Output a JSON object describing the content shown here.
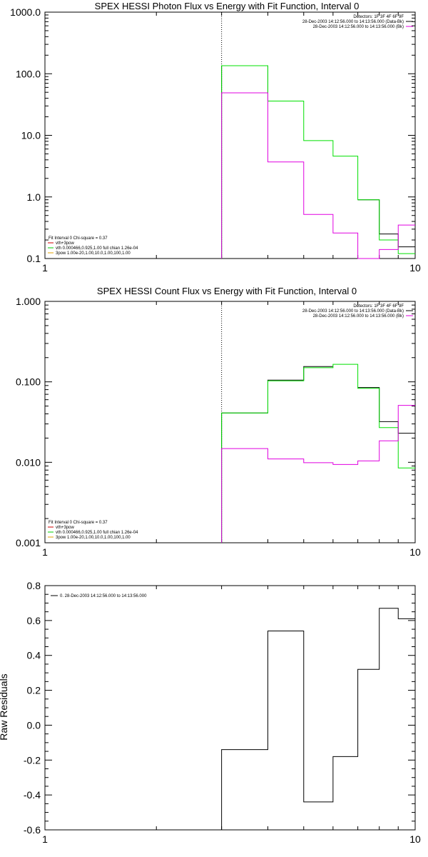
{
  "chart_data": [
    {
      "type": "line",
      "title": "SPEX HESSI Photon Flux vs Energy with Fit Function, Interval 0",
      "xlabel": "",
      "ylabel": "",
      "x_scale": "log",
      "y_scale": "log",
      "xlim": [
        1,
        10
      ],
      "ylim": [
        0.1,
        1000
      ],
      "x_ticks": [
        {
          "value": 1,
          "label": "1"
        },
        {
          "value": 10,
          "label": "10"
        }
      ],
      "y_ticks": [
        {
          "value": 0.1,
          "label": "0.1"
        },
        {
          "value": 1,
          "label": "1.0"
        },
        {
          "value": 10,
          "label": "10.0"
        },
        {
          "value": 100,
          "label": "100.0"
        },
        {
          "value": 1000,
          "label": "1000.0"
        }
      ],
      "vline_x": 3.0,
      "header_lines": [
        "Detectors: 1F 3F 4F 6F 9F",
        "28-Dec-2003 14:12:56.000 to 14:13:56.000 (Data-Bk)",
        "28-Dec-2003 14:12:56.000 to 14:13:56.000 (Bk)"
      ],
      "header_colors": [
        "none",
        "#000000",
        "#e000e0"
      ],
      "fit_legend": [
        {
          "text": "Fit Interval 0   Chi-square = 0.37",
          "color": "none"
        },
        {
          "text": "vth+3pow",
          "color": "#d00000"
        },
        {
          "text": "vth 0.000466,0.925,1.00  full chian 1.26e-04",
          "color": "#00d000"
        },
        {
          "text": "3pow 1.00e-20,1.00,10.0,1.00,100,1.00",
          "color": "#e0a000"
        }
      ],
      "series": [
        {
          "color": "#000000",
          "edges": [
            3,
            4,
            5,
            6,
            7,
            8,
            9,
            10
          ],
          "values": [
            135,
            36,
            null,
            null,
            0.9,
            0.25,
            0.155
          ]
        },
        {
          "color": "#00e000",
          "edges": [
            3,
            4,
            5,
            6,
            7,
            8,
            9,
            10
          ],
          "values": [
            135,
            36,
            8.2,
            4.6,
            0.9,
            0.2,
            0.12
          ]
        },
        {
          "color": "#e000e0",
          "edges": [
            3,
            4,
            5,
            6,
            7,
            8,
            9,
            10
          ],
          "values": [
            49,
            3.7,
            0.52,
            0.26,
            0.1,
            0.14,
            0.35
          ]
        }
      ]
    },
    {
      "type": "line",
      "title": "SPEX HESSI Count Flux vs Energy with Fit Function, Interval 0",
      "xlabel": "",
      "ylabel": "",
      "x_scale": "log",
      "y_scale": "log",
      "xlim": [
        1,
        10
      ],
      "ylim": [
        0.001,
        1
      ],
      "x_ticks": [
        {
          "value": 1,
          "label": "1"
        },
        {
          "value": 10,
          "label": "10"
        }
      ],
      "y_ticks": [
        {
          "value": 0.001,
          "label": "0.001"
        },
        {
          "value": 0.01,
          "label": "0.010"
        },
        {
          "value": 0.1,
          "label": "0.100"
        },
        {
          "value": 1,
          "label": "1.000"
        }
      ],
      "vline_x": 3.0,
      "header_lines": [
        "Detectors: 1F 3F 4F 6F 9F",
        "28-Dec-2003 14:12:56.000 to 14:13:56.000 (Data-Bk)",
        "28-Dec-2003 14:12:56.000 to 14:13:56.000 (Bk)"
      ],
      "header_colors": [
        "none",
        "#000000",
        "#e000e0"
      ],
      "fit_legend": [
        {
          "text": "Fit Interval 0   Chi-square = 0.37",
          "color": "none"
        },
        {
          "text": "vth+3pow",
          "color": "#d00000"
        },
        {
          "text": "vth 0.000466,0.925,1.00  full chian 1.26e-04",
          "color": "#00d000"
        },
        {
          "text": "3pow 1.00e-20,1.00,10.0,1.00,100,1.00",
          "color": "#e0a000"
        }
      ],
      "series": [
        {
          "color": "#000000",
          "edges": [
            3,
            4,
            5,
            6,
            7,
            8,
            9,
            10
          ],
          "values": [
            0.041,
            0.105,
            0.155,
            null,
            0.085,
            0.032,
            0.023
          ]
        },
        {
          "color": "#00e000",
          "edges": [
            3,
            4,
            5,
            6,
            7,
            8,
            9,
            10
          ],
          "values": [
            0.041,
            0.103,
            0.15,
            0.165,
            0.083,
            0.027,
            0.0085
          ]
        },
        {
          "color": "#e000e0",
          "edges": [
            3,
            4,
            5,
            6,
            7,
            8,
            9,
            10
          ],
          "values": [
            0.0148,
            0.011,
            0.0099,
            0.0094,
            0.0104,
            0.0185,
            0.051
          ]
        }
      ]
    },
    {
      "type": "line",
      "title": "",
      "xlabel": "",
      "ylabel": "Raw Residuals",
      "x_scale": "log",
      "y_scale": "linear",
      "xlim": [
        1,
        10
      ],
      "ylim": [
        -0.6,
        0.8
      ],
      "x_ticks": [
        {
          "value": 1,
          "label": "1"
        },
        {
          "value": 10,
          "label": "10"
        }
      ],
      "y_ticks": [
        {
          "value": -0.6,
          "label": "-0.6"
        },
        {
          "value": -0.4,
          "label": "-0.4"
        },
        {
          "value": -0.2,
          "label": "-0.2"
        },
        {
          "value": 0,
          "label": "0.0"
        },
        {
          "value": 0.2,
          "label": "0.2"
        },
        {
          "value": 0.4,
          "label": "0.4"
        },
        {
          "value": 0.6,
          "label": "0.6"
        },
        {
          "value": 0.8,
          "label": "0.8"
        }
      ],
      "legend": [
        {
          "text": "0. 28-Dec-2003 14:12:56.000 to 14:13:56.000",
          "color": "#000000"
        }
      ],
      "series": [
        {
          "color": "#000000",
          "edges": [
            3,
            4,
            5,
            6,
            7,
            8,
            9,
            10
          ],
          "values": [
            -0.14,
            0.54,
            -0.44,
            -0.18,
            0.32,
            0.67,
            0.61
          ]
        }
      ]
    }
  ]
}
